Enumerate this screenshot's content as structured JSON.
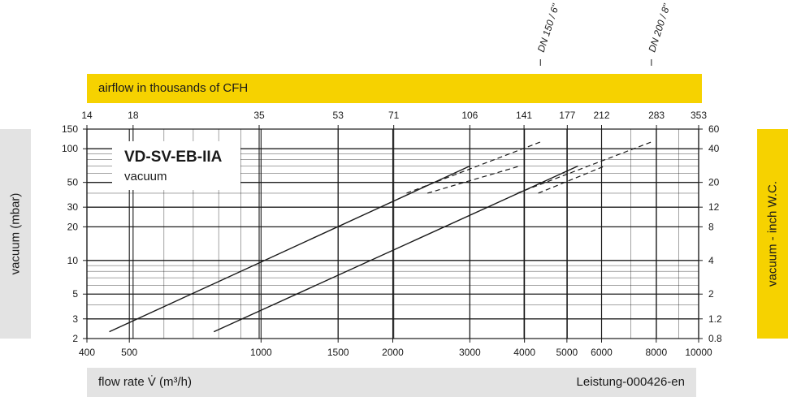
{
  "header_band": {
    "label": "airflow in thousands of CFH"
  },
  "footer_band": {
    "label": "flow rate V̇ (m³/h)",
    "code": "Leistung-000426-en"
  },
  "left_axis_label": "vacuum (mbar)",
  "right_axis_label": "vacuum  - inch W.C.",
  "colors": {
    "yellow": "#f6d200",
    "gray": "#e3e3e3",
    "ink": "#1a1a1a"
  },
  "chart_data": {
    "type": "line",
    "title": "VD-SV-EB-IIA",
    "subtitle": "vacuum",
    "x_scale": "log",
    "y_scale": "log",
    "xlim": [
      400,
      10000
    ],
    "ylim": [
      2,
      150
    ],
    "x_ticks": [
      400,
      500,
      1000,
      1500,
      2000,
      3000,
      4000,
      5000,
      6000,
      8000,
      10000
    ],
    "y_ticks": [
      2,
      3,
      5,
      10,
      20,
      30,
      50,
      100,
      150
    ],
    "top_ticks": [
      {
        "label": "14",
        "m3h": 400
      },
      {
        "label": "18",
        "m3h": 510
      },
      {
        "label": "35",
        "m3h": 990
      },
      {
        "label": "53",
        "m3h": 1500
      },
      {
        "label": "71",
        "m3h": 2010
      },
      {
        "label": "106",
        "m3h": 3000
      },
      {
        "label": "141",
        "m3h": 3990
      },
      {
        "label": "177",
        "m3h": 5010
      },
      {
        "label": "212",
        "m3h": 6000
      },
      {
        "label": "283",
        "m3h": 8010
      },
      {
        "label": "353",
        "m3h": 10000
      }
    ],
    "right_ticks": [
      {
        "label": "0.8",
        "mbar": 2
      },
      {
        "label": "1.2",
        "mbar": 3
      },
      {
        "label": "2",
        "mbar": 5
      },
      {
        "label": "4",
        "mbar": 10
      },
      {
        "label": "8",
        "mbar": 20
      },
      {
        "label": "12",
        "mbar": 30
      },
      {
        "label": "20",
        "mbar": 50
      },
      {
        "label": "40",
        "mbar": 100
      },
      {
        "label": "60",
        "mbar": 150
      }
    ],
    "series": [
      {
        "name": "DN 150 / 6\"",
        "callout_x": 4350,
        "points": [
          [
            450,
            2.3
          ],
          [
            3000,
            70
          ]
        ],
        "dashed": [
          [
            [
              2150,
              40
            ],
            [
              4350,
              115
            ]
          ],
          [
            [
              2400,
              40
            ],
            [
              3900,
              70
            ]
          ]
        ]
      },
      {
        "name": "DN 200 / 8\"",
        "callout_x": 7800,
        "points": [
          [
            780,
            2.3
          ],
          [
            5300,
            70
          ]
        ],
        "dashed": [
          [
            [
              3850,
              40
            ],
            [
              7800,
              115
            ]
          ],
          [
            [
              4300,
              40
            ],
            [
              6100,
              70
            ]
          ]
        ]
      }
    ]
  }
}
